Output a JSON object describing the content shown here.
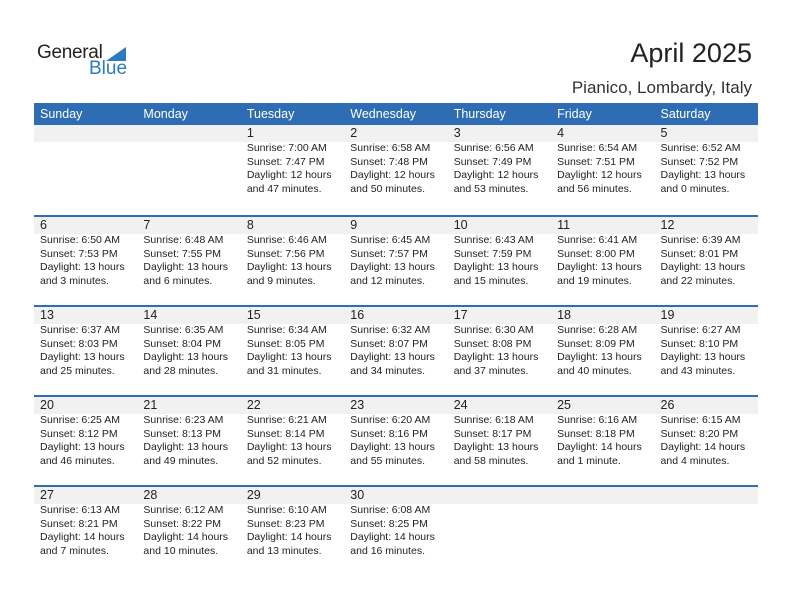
{
  "logo": {
    "general": "General",
    "blue": "Blue"
  },
  "title": "April 2025",
  "location": "Pianico, Lombardy, Italy",
  "colors": {
    "header": "#2e6db4",
    "date_bar": "#f1f1f1",
    "logo_blue": "#2a7bc0"
  },
  "weekdays": [
    "Sunday",
    "Monday",
    "Tuesday",
    "Wednesday",
    "Thursday",
    "Friday",
    "Saturday"
  ],
  "weeks": [
    [
      null,
      null,
      {
        "day": "1",
        "sunrise": "Sunrise: 7:00 AM",
        "sunset": "Sunset: 7:47 PM",
        "daylight": "Daylight: 12 hours",
        "minutes": "and 47 minutes."
      },
      {
        "day": "2",
        "sunrise": "Sunrise: 6:58 AM",
        "sunset": "Sunset: 7:48 PM",
        "daylight": "Daylight: 12 hours",
        "minutes": "and 50 minutes."
      },
      {
        "day": "3",
        "sunrise": "Sunrise: 6:56 AM",
        "sunset": "Sunset: 7:49 PM",
        "daylight": "Daylight: 12 hours",
        "minutes": "and 53 minutes."
      },
      {
        "day": "4",
        "sunrise": "Sunrise: 6:54 AM",
        "sunset": "Sunset: 7:51 PM",
        "daylight": "Daylight: 12 hours",
        "minutes": "and 56 minutes."
      },
      {
        "day": "5",
        "sunrise": "Sunrise: 6:52 AM",
        "sunset": "Sunset: 7:52 PM",
        "daylight": "Daylight: 13 hours",
        "minutes": "and 0 minutes."
      }
    ],
    [
      {
        "day": "6",
        "sunrise": "Sunrise: 6:50 AM",
        "sunset": "Sunset: 7:53 PM",
        "daylight": "Daylight: 13 hours",
        "minutes": "and 3 minutes."
      },
      {
        "day": "7",
        "sunrise": "Sunrise: 6:48 AM",
        "sunset": "Sunset: 7:55 PM",
        "daylight": "Daylight: 13 hours",
        "minutes": "and 6 minutes."
      },
      {
        "day": "8",
        "sunrise": "Sunrise: 6:46 AM",
        "sunset": "Sunset: 7:56 PM",
        "daylight": "Daylight: 13 hours",
        "minutes": "and 9 minutes."
      },
      {
        "day": "9",
        "sunrise": "Sunrise: 6:45 AM",
        "sunset": "Sunset: 7:57 PM",
        "daylight": "Daylight: 13 hours",
        "minutes": "and 12 minutes."
      },
      {
        "day": "10",
        "sunrise": "Sunrise: 6:43 AM",
        "sunset": "Sunset: 7:59 PM",
        "daylight": "Daylight: 13 hours",
        "minutes": "and 15 minutes."
      },
      {
        "day": "11",
        "sunrise": "Sunrise: 6:41 AM",
        "sunset": "Sunset: 8:00 PM",
        "daylight": "Daylight: 13 hours",
        "minutes": "and 19 minutes."
      },
      {
        "day": "12",
        "sunrise": "Sunrise: 6:39 AM",
        "sunset": "Sunset: 8:01 PM",
        "daylight": "Daylight: 13 hours",
        "minutes": "and 22 minutes."
      }
    ],
    [
      {
        "day": "13",
        "sunrise": "Sunrise: 6:37 AM",
        "sunset": "Sunset: 8:03 PM",
        "daylight": "Daylight: 13 hours",
        "minutes": "and 25 minutes."
      },
      {
        "day": "14",
        "sunrise": "Sunrise: 6:35 AM",
        "sunset": "Sunset: 8:04 PM",
        "daylight": "Daylight: 13 hours",
        "minutes": "and 28 minutes."
      },
      {
        "day": "15",
        "sunrise": "Sunrise: 6:34 AM",
        "sunset": "Sunset: 8:05 PM",
        "daylight": "Daylight: 13 hours",
        "minutes": "and 31 minutes."
      },
      {
        "day": "16",
        "sunrise": "Sunrise: 6:32 AM",
        "sunset": "Sunset: 8:07 PM",
        "daylight": "Daylight: 13 hours",
        "minutes": "and 34 minutes."
      },
      {
        "day": "17",
        "sunrise": "Sunrise: 6:30 AM",
        "sunset": "Sunset: 8:08 PM",
        "daylight": "Daylight: 13 hours",
        "minutes": "and 37 minutes."
      },
      {
        "day": "18",
        "sunrise": "Sunrise: 6:28 AM",
        "sunset": "Sunset: 8:09 PM",
        "daylight": "Daylight: 13 hours",
        "minutes": "and 40 minutes."
      },
      {
        "day": "19",
        "sunrise": "Sunrise: 6:27 AM",
        "sunset": "Sunset: 8:10 PM",
        "daylight": "Daylight: 13 hours",
        "minutes": "and 43 minutes."
      }
    ],
    [
      {
        "day": "20",
        "sunrise": "Sunrise: 6:25 AM",
        "sunset": "Sunset: 8:12 PM",
        "daylight": "Daylight: 13 hours",
        "minutes": "and 46 minutes."
      },
      {
        "day": "21",
        "sunrise": "Sunrise: 6:23 AM",
        "sunset": "Sunset: 8:13 PM",
        "daylight": "Daylight: 13 hours",
        "minutes": "and 49 minutes."
      },
      {
        "day": "22",
        "sunrise": "Sunrise: 6:21 AM",
        "sunset": "Sunset: 8:14 PM",
        "daylight": "Daylight: 13 hours",
        "minutes": "and 52 minutes."
      },
      {
        "day": "23",
        "sunrise": "Sunrise: 6:20 AM",
        "sunset": "Sunset: 8:16 PM",
        "daylight": "Daylight: 13 hours",
        "minutes": "and 55 minutes."
      },
      {
        "day": "24",
        "sunrise": "Sunrise: 6:18 AM",
        "sunset": "Sunset: 8:17 PM",
        "daylight": "Daylight: 13 hours",
        "minutes": "and 58 minutes."
      },
      {
        "day": "25",
        "sunrise": "Sunrise: 6:16 AM",
        "sunset": "Sunset: 8:18 PM",
        "daylight": "Daylight: 14 hours",
        "minutes": "and 1 minute."
      },
      {
        "day": "26",
        "sunrise": "Sunrise: 6:15 AM",
        "sunset": "Sunset: 8:20 PM",
        "daylight": "Daylight: 14 hours",
        "minutes": "and 4 minutes."
      }
    ],
    [
      {
        "day": "27",
        "sunrise": "Sunrise: 6:13 AM",
        "sunset": "Sunset: 8:21 PM",
        "daylight": "Daylight: 14 hours",
        "minutes": "and 7 minutes."
      },
      {
        "day": "28",
        "sunrise": "Sunrise: 6:12 AM",
        "sunset": "Sunset: 8:22 PM",
        "daylight": "Daylight: 14 hours",
        "minutes": "and 10 minutes."
      },
      {
        "day": "29",
        "sunrise": "Sunrise: 6:10 AM",
        "sunset": "Sunset: 8:23 PM",
        "daylight": "Daylight: 14 hours",
        "minutes": "and 13 minutes."
      },
      {
        "day": "30",
        "sunrise": "Sunrise: 6:08 AM",
        "sunset": "Sunset: 8:25 PM",
        "daylight": "Daylight: 14 hours",
        "minutes": "and 16 minutes."
      },
      null,
      null,
      null
    ]
  ]
}
